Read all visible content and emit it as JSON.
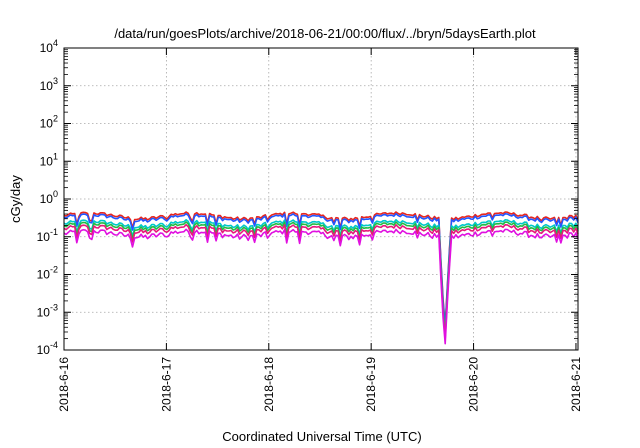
{
  "chart_data": {
    "type": "line",
    "title": "/data/run/goesPlots/archive/2018-06-21/00:00/flux/../bryn/5daysEarth.plot",
    "xlabel": "Coordinated Universal Time (UTC)",
    "ylabel": "cGy/day",
    "yscale": "log",
    "ylim_exponents": [
      -4,
      4
    ],
    "ytick_base": "10",
    "ytick_exponents": [
      "-4",
      "-3",
      "-2",
      "-1",
      "0",
      "1",
      "2",
      "3",
      "4"
    ],
    "xlim_days": [
      0,
      5.02
    ],
    "xtick_labels": [
      "2018-6-16",
      "2018-6-17",
      "2018-6-18",
      "2018-6-19",
      "2018-6-20",
      "2018-6-21"
    ],
    "grid": true,
    "legend": "none",
    "series_colors": [
      "#e6261f",
      "#2255ff",
      "#00c8c8",
      "#22bb44",
      "#e6197a",
      "#e010e0"
    ],
    "baseline_levels": [
      0.36,
      0.32,
      0.22,
      0.19,
      0.16,
      0.12
    ],
    "anomalies": [
      {
        "t": 0.13,
        "factor": 0.5
      },
      {
        "t": 0.26,
        "factor": 0.45
      },
      {
        "t": 1.25,
        "factor": 0.55
      },
      {
        "t": 2.3,
        "factor": 0.5
      },
      {
        "t": 3.72,
        "factor": 0.001
      }
    ]
  }
}
